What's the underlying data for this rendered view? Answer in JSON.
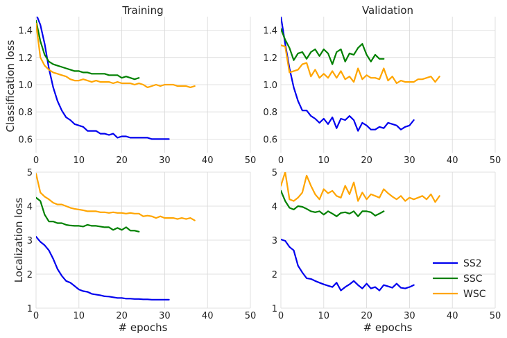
{
  "chart_data": [
    {
      "type": "line",
      "title": "Training",
      "xlabel": "",
      "ylabel": "Classification loss",
      "xlim": [
        0,
        50
      ],
      "ylim": [
        0.5,
        1.5
      ],
      "xticks": [
        0,
        10,
        20,
        30,
        40,
        50
      ],
      "yticks": [
        0.6,
        0.8,
        1.0,
        1.2,
        1.4
      ],
      "ytick_labels": [
        "0.6",
        "0.8",
        "1.0",
        "1.2",
        "1.4"
      ],
      "series": [
        {
          "name": "SS2",
          "color": "#0000ee",
          "x": [
            0,
            1,
            2,
            3,
            4,
            5,
            6,
            7,
            8,
            9,
            10,
            11,
            12,
            13,
            14,
            15,
            16,
            17,
            18,
            19,
            20,
            21,
            22,
            23,
            24,
            25,
            26,
            27,
            28,
            29,
            30,
            31
          ],
          "values": [
            1.52,
            1.44,
            1.3,
            1.12,
            0.98,
            0.88,
            0.81,
            0.76,
            0.74,
            0.71,
            0.7,
            0.69,
            0.66,
            0.66,
            0.66,
            0.64,
            0.64,
            0.63,
            0.64,
            0.61,
            0.62,
            0.62,
            0.61,
            0.61,
            0.61,
            0.61,
            0.61,
            0.6,
            0.6,
            0.6,
            0.6,
            0.6
          ]
        },
        {
          "name": "SSC",
          "color": "#008000",
          "x": [
            0,
            1,
            2,
            3,
            4,
            5,
            6,
            7,
            8,
            9,
            10,
            11,
            12,
            13,
            14,
            15,
            16,
            17,
            18,
            19,
            20,
            21,
            22,
            23,
            24
          ],
          "values": [
            1.47,
            1.32,
            1.22,
            1.17,
            1.15,
            1.14,
            1.13,
            1.12,
            1.11,
            1.1,
            1.1,
            1.09,
            1.09,
            1.08,
            1.08,
            1.08,
            1.08,
            1.07,
            1.07,
            1.07,
            1.05,
            1.06,
            1.05,
            1.04,
            1.05
          ]
        },
        {
          "name": "WSC",
          "color": "#ffa500",
          "x": [
            0,
            1,
            2,
            3,
            4,
            5,
            6,
            7,
            8,
            9,
            10,
            11,
            12,
            13,
            14,
            15,
            16,
            17,
            18,
            19,
            20,
            21,
            22,
            23,
            24,
            25,
            26,
            27,
            28,
            29,
            30,
            31,
            32,
            33,
            34,
            35,
            36,
            37
          ],
          "values": [
            1.45,
            1.2,
            1.14,
            1.11,
            1.09,
            1.08,
            1.07,
            1.06,
            1.04,
            1.03,
            1.03,
            1.04,
            1.03,
            1.02,
            1.03,
            1.02,
            1.02,
            1.02,
            1.01,
            1.02,
            1.01,
            1.01,
            1.01,
            1.0,
            1.01,
            1.0,
            0.98,
            0.99,
            1.0,
            0.99,
            1.0,
            1.0,
            1.0,
            0.99,
            0.99,
            0.99,
            0.98,
            0.99
          ]
        }
      ]
    },
    {
      "type": "line",
      "title": "Validation",
      "xlabel": "",
      "ylabel": "",
      "xlim": [
        0,
        50
      ],
      "ylim": [
        0.5,
        1.5
      ],
      "xticks": [
        0,
        10,
        20,
        30,
        40,
        50
      ],
      "yticks": [
        0.6,
        0.8,
        1.0,
        1.2,
        1.4
      ],
      "ytick_labels": [
        "0.6",
        "0.8",
        "1.0",
        "1.2",
        "1.4"
      ],
      "series": [
        {
          "name": "SS2",
          "color": "#0000ee",
          "x": [
            0,
            1,
            2,
            3,
            4,
            5,
            6,
            7,
            8,
            9,
            10,
            11,
            12,
            13,
            14,
            15,
            16,
            17,
            18,
            19,
            20,
            21,
            22,
            23,
            24,
            25,
            26,
            27,
            28,
            29,
            30,
            31
          ],
          "values": [
            1.5,
            1.3,
            1.12,
            0.98,
            0.88,
            0.81,
            0.81,
            0.77,
            0.75,
            0.72,
            0.75,
            0.71,
            0.76,
            0.68,
            0.75,
            0.74,
            0.77,
            0.74,
            0.66,
            0.72,
            0.7,
            0.67,
            0.67,
            0.69,
            0.68,
            0.72,
            0.71,
            0.7,
            0.67,
            0.69,
            0.7,
            0.74
          ]
        },
        {
          "name": "SSC",
          "color": "#008000",
          "x": [
            0,
            1,
            2,
            3,
            4,
            5,
            6,
            7,
            8,
            9,
            10,
            11,
            12,
            13,
            14,
            15,
            16,
            17,
            18,
            19,
            20,
            21,
            22,
            23,
            24
          ],
          "values": [
            1.41,
            1.33,
            1.27,
            1.18,
            1.23,
            1.24,
            1.19,
            1.24,
            1.26,
            1.21,
            1.26,
            1.23,
            1.15,
            1.24,
            1.26,
            1.17,
            1.23,
            1.22,
            1.27,
            1.3,
            1.22,
            1.17,
            1.22,
            1.19,
            1.19
          ]
        },
        {
          "name": "WSC",
          "color": "#ffa500",
          "x": [
            0,
            1,
            2,
            3,
            4,
            5,
            6,
            7,
            8,
            9,
            10,
            11,
            12,
            13,
            14,
            15,
            16,
            17,
            18,
            19,
            20,
            21,
            22,
            23,
            24,
            25,
            26,
            27,
            28,
            29,
            30,
            31,
            32,
            33,
            34,
            35,
            36,
            37
          ],
          "values": [
            1.29,
            1.28,
            1.09,
            1.1,
            1.11,
            1.15,
            1.16,
            1.06,
            1.11,
            1.05,
            1.08,
            1.05,
            1.1,
            1.05,
            1.1,
            1.04,
            1.06,
            1.02,
            1.12,
            1.04,
            1.07,
            1.05,
            1.05,
            1.04,
            1.12,
            1.03,
            1.06,
            1.01,
            1.03,
            1.02,
            1.02,
            1.02,
            1.04,
            1.04,
            1.05,
            1.06,
            1.02,
            1.06
          ]
        }
      ]
    },
    {
      "type": "line",
      "title": "",
      "xlabel": "# epochs",
      "ylabel": "Localization loss",
      "xlim": [
        0,
        50
      ],
      "ylim": [
        1,
        5
      ],
      "xticks": [
        0,
        10,
        20,
        30,
        40,
        50
      ],
      "yticks": [
        1,
        2,
        3,
        4,
        5
      ],
      "ytick_labels": [
        "1",
        "2",
        "3",
        "4",
        "5"
      ],
      "series": [
        {
          "name": "SS2",
          "color": "#0000ee",
          "x": [
            0,
            1,
            2,
            3,
            4,
            5,
            6,
            7,
            8,
            9,
            10,
            11,
            12,
            13,
            14,
            15,
            16,
            17,
            18,
            19,
            20,
            21,
            22,
            23,
            24,
            25,
            26,
            27,
            28,
            29,
            30,
            31
          ],
          "values": [
            3.1,
            2.95,
            2.85,
            2.7,
            2.45,
            2.15,
            1.95,
            1.8,
            1.75,
            1.65,
            1.55,
            1.5,
            1.48,
            1.42,
            1.4,
            1.38,
            1.35,
            1.34,
            1.32,
            1.3,
            1.3,
            1.28,
            1.28,
            1.27,
            1.27,
            1.26,
            1.26,
            1.25,
            1.25,
            1.25,
            1.25,
            1.25
          ]
        },
        {
          "name": "SSC",
          "color": "#008000",
          "x": [
            0,
            1,
            2,
            3,
            4,
            5,
            6,
            7,
            8,
            9,
            10,
            11,
            12,
            13,
            14,
            15,
            16,
            17,
            18,
            19,
            20,
            21,
            22,
            23,
            24
          ],
          "values": [
            4.25,
            4.15,
            3.75,
            3.55,
            3.55,
            3.5,
            3.5,
            3.45,
            3.43,
            3.42,
            3.42,
            3.4,
            3.45,
            3.42,
            3.42,
            3.4,
            3.38,
            3.38,
            3.3,
            3.36,
            3.3,
            3.38,
            3.28,
            3.28,
            3.25
          ]
        },
        {
          "name": "WSC",
          "color": "#ffa500",
          "x": [
            0,
            1,
            2,
            3,
            4,
            5,
            6,
            7,
            8,
            9,
            10,
            11,
            12,
            13,
            14,
            15,
            16,
            17,
            18,
            19,
            20,
            21,
            22,
            23,
            24,
            25,
            26,
            27,
            28,
            29,
            30,
            31,
            32,
            33,
            34,
            35,
            36,
            37
          ],
          "values": [
            4.95,
            4.4,
            4.28,
            4.2,
            4.1,
            4.05,
            4.05,
            4.0,
            3.95,
            3.92,
            3.9,
            3.88,
            3.85,
            3.85,
            3.85,
            3.82,
            3.82,
            3.8,
            3.82,
            3.8,
            3.8,
            3.78,
            3.8,
            3.78,
            3.78,
            3.7,
            3.72,
            3.7,
            3.65,
            3.7,
            3.65,
            3.65,
            3.65,
            3.62,
            3.65,
            3.62,
            3.65,
            3.58
          ]
        }
      ]
    },
    {
      "type": "line",
      "title": "",
      "xlabel": "# epochs",
      "ylabel": "",
      "xlim": [
        0,
        50
      ],
      "ylim": [
        1,
        5
      ],
      "xticks": [
        0,
        10,
        20,
        30,
        40,
        50
      ],
      "yticks": [
        1,
        2,
        3,
        4,
        5
      ],
      "ytick_labels": [
        "1",
        "2",
        "3",
        "4",
        "5"
      ],
      "series": [
        {
          "name": "SS2",
          "color": "#0000ee",
          "x": [
            0,
            1,
            2,
            3,
            4,
            5,
            6,
            7,
            8,
            9,
            10,
            11,
            12,
            13,
            14,
            15,
            16,
            17,
            18,
            19,
            20,
            21,
            22,
            23,
            24,
            25,
            26,
            27,
            28,
            29,
            30,
            31
          ],
          "values": [
            3.02,
            2.98,
            2.8,
            2.7,
            2.25,
            2.05,
            1.88,
            1.86,
            1.8,
            1.75,
            1.7,
            1.66,
            1.62,
            1.75,
            1.52,
            1.62,
            1.7,
            1.8,
            1.68,
            1.58,
            1.72,
            1.58,
            1.62,
            1.52,
            1.68,
            1.64,
            1.6,
            1.72,
            1.6,
            1.58,
            1.62,
            1.68
          ]
        },
        {
          "name": "SSC",
          "color": "#008000",
          "x": [
            0,
            1,
            2,
            3,
            4,
            5,
            6,
            7,
            8,
            9,
            10,
            11,
            12,
            13,
            14,
            15,
            16,
            17,
            18,
            19,
            20,
            21,
            22,
            23,
            24
          ],
          "values": [
            4.45,
            4.15,
            3.95,
            3.9,
            4.0,
            3.98,
            3.92,
            3.85,
            3.82,
            3.85,
            3.75,
            3.85,
            3.78,
            3.7,
            3.8,
            3.82,
            3.78,
            3.85,
            3.7,
            3.85,
            3.85,
            3.82,
            3.72,
            3.78,
            3.85
          ]
        },
        {
          "name": "WSC",
          "color": "#ffa500",
          "x": [
            0,
            1,
            2,
            3,
            4,
            5,
            6,
            7,
            8,
            9,
            10,
            11,
            12,
            13,
            14,
            15,
            16,
            17,
            18,
            19,
            20,
            21,
            22,
            23,
            24,
            25,
            26,
            27,
            28,
            29,
            30,
            31,
            32,
            33,
            34,
            35,
            36,
            37
          ],
          "values": [
            4.6,
            5.0,
            4.2,
            4.15,
            4.25,
            4.4,
            4.9,
            4.6,
            4.35,
            4.2,
            4.5,
            4.38,
            4.45,
            4.3,
            4.25,
            4.6,
            4.35,
            4.7,
            4.15,
            4.4,
            4.2,
            4.35,
            4.3,
            4.25,
            4.5,
            4.38,
            4.28,
            4.2,
            4.3,
            4.15,
            4.25,
            4.2,
            4.25,
            4.3,
            4.2,
            4.35,
            4.12,
            4.3
          ]
        }
      ]
    }
  ],
  "legend": {
    "placement": "bottom-right of validation localization panel",
    "entries": [
      {
        "label": "SS2",
        "color": "#0000ee"
      },
      {
        "label": "SSC",
        "color": "#008000"
      },
      {
        "label": "WSC",
        "color": "#ffa500"
      }
    ]
  }
}
